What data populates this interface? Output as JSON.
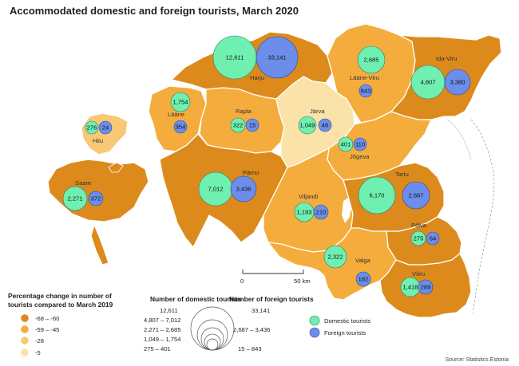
{
  "title": "Accommodated domestic and foreign tourists, March 2020",
  "colors": {
    "class1": "#dc8a1c",
    "class2": "#f4ad3c",
    "class3": "#f8c874",
    "class4": "#fbe2a8",
    "domestic": "#6ff0b0",
    "foreign": "#6c8eea"
  },
  "counties": [
    {
      "id": "harju",
      "name": "Harju",
      "class": 1,
      "domestic": "12,611",
      "foreign": "33,141"
    },
    {
      "id": "ida-viru",
      "name": "Ida-Viru",
      "class": 1,
      "domestic": "4,807",
      "foreign": "3,380"
    },
    {
      "id": "laane-viru",
      "name": "Lääne-Viru",
      "class": 2,
      "domestic": "2,685",
      "foreign": "843"
    },
    {
      "id": "laane",
      "name": "Lääne",
      "class": 2,
      "domestic": "1,754",
      "foreign": "354"
    },
    {
      "id": "hiiu",
      "name": "Hiiu",
      "class": 3,
      "domestic": "276",
      "foreign": "24"
    },
    {
      "id": "rapla",
      "name": "Rapla",
      "class": 2,
      "domestic": "322",
      "foreign": "15"
    },
    {
      "id": "jarva",
      "name": "Järva",
      "class": 4,
      "domestic": "1,049",
      "foreign": "46"
    },
    {
      "id": "jogeva",
      "name": "Jõgeva",
      "class": 2,
      "domestic": "401",
      "foreign": "110"
    },
    {
      "id": "saare",
      "name": "Saare",
      "class": 1,
      "domestic": "2,271",
      "foreign": "372"
    },
    {
      "id": "parnu",
      "name": "Pärnu",
      "class": 1,
      "domestic": "7,012",
      "foreign": "3,436"
    },
    {
      "id": "viljandi",
      "name": "Viljandi",
      "class": 2,
      "domestic": "1,193",
      "foreign": "210"
    },
    {
      "id": "tartu",
      "name": "Tartu",
      "class": 1,
      "domestic": "6,170",
      "foreign": "2,687"
    },
    {
      "id": "polva",
      "name": "Põlva",
      "class": 1,
      "domestic": "275",
      "foreign": "64"
    },
    {
      "id": "valga",
      "name": "Valga",
      "class": 2,
      "domestic": "2,322",
      "foreign": "182"
    },
    {
      "id": "voru",
      "name": "Võru",
      "class": 1,
      "domestic": "1,418",
      "foreign": "289"
    }
  ],
  "scale_bar": {
    "start": "0",
    "end": "50 km"
  },
  "legend": {
    "change_title_1": "Percentage change in number of",
    "change_title_2": "tourists compared to March 2019",
    "change_classes": [
      "-68 – -60",
      "-59 – -45",
      "-28",
      "-5"
    ],
    "domestic_title": "Number of domestic tourists",
    "domestic_ranges": [
      "12,611",
      "4,807 – 7,012",
      "2,271 – 2,685",
      "1,049 – 1,754",
      "275 –  401"
    ],
    "foreign_title": "Number of foreign tourists",
    "foreign_ranges": [
      "33,141",
      "2,687 – 3,436",
      "15 –    843"
    ],
    "domestic_label": "Domestic tourists",
    "foreign_label": "Foreign tourists"
  },
  "source": "Source: Statistics Estonia"
}
